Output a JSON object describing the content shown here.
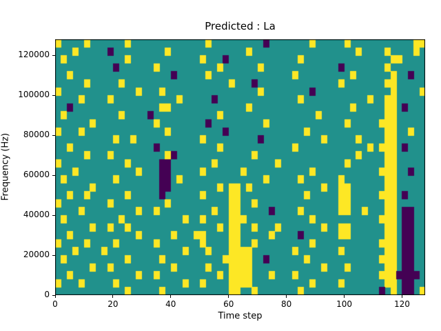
{
  "chart_data": {
    "type": "heatmap",
    "title": "Predicted : La",
    "xlabel": "Time step",
    "ylabel": "Frequency (Hz)",
    "x_range": [
      0,
      128
    ],
    "y_range": [
      0,
      128000
    ],
    "x_ticks": [
      0,
      20,
      40,
      60,
      80,
      100,
      120
    ],
    "y_ticks": [
      0,
      20000,
      40000,
      60000,
      80000,
      100000,
      120000
    ],
    "grid_legend": "rows top-to-bottom (high freq to low), 64 columns = 2 time steps each; '.'=mid class (teal), 'y'=high class (yellow), 'p'=low class (purple)",
    "colors": {
      ".": "#21918c",
      "y": "#fde725",
      "p": "#440154"
    },
    "grid": [
      [
        "y....y..",
        "....y...",
        "........",
        "..y.....",
        "....p...",
        "....y...",
        "..y.....",
        "......yy"
      ],
      [
        "...y....",
        ".p......",
        "...y....",
        "........",
        ".y......",
        "........",
        "....y...",
        ".y....y."
      ],
      [
        ".y......",
        "....y...",
        "........",
        ".y...p..",
        "........",
        "..y.....",
        "........",
        "..yy...."
      ],
      [
        "........",
        "..p.....",
        ".y......",
        "....y...",
        "...y....",
        "........",
        ".p......",
        ".y......"
      ],
      [
        "..y.....",
        "........",
        "....p...",
        "..y.....",
        "........",
        ".y......",
        "...y....",
        "..y..p.."
      ],
      [
        ".....y..",
        "...y....",
        "........",
        "......y.",
        "..p.....",
        "........",
        ".y......",
        ".yy....."
      ],
      [
        "y.......",
        "......y.",
        "..y.....",
        "........",
        "...y....",
        "....p...",
        "........",
        "..y....y"
      ],
      [
        "....y...",
        ".y......",
        ".....y..",
        "...p....",
        "........",
        "..y.....",
        "......y.",
        ".yy....."
      ],
      [
        "..p.....",
        "........",
        "..yy....",
        "........",
        ".y......",
        "........",
        "...y....",
        ".yy.p..."
      ],
      [
        ".y......",
        "...y....",
        "p.......",
        "....y...",
        "........",
        ".....y..",
        "........",
        ".yy....."
      ],
      [
        "......y.",
        "........",
        ".y......",
        "..p.....",
        "....y...",
        "........",
        "..y.....",
        "yyy....."
      ],
      [
        "y...y...",
        "........",
        "...y....",
        ".....p..",
        "........",
        "...y....",
        "........",
        ".yy..y.."
      ],
      [
        "........",
        "..y..y..",
        "........",
        ".y......",
        "...p....",
        "......y.",
        "....y...",
        ".yy....."
      ],
      [
        "..y.....",
        "........",
        ".p......",
        "....y...",
        "........",
        ".y......",
        "......y.",
        "yyy.p..."
      ],
      [
        ".....y..",
        ".y......",
        "...yp...",
        "........",
        "..y.....",
        "........",
        "....y...",
        ".yy....."
      ],
      [
        "y.......",
        "....y...",
        "..pp....",
        "...y....",
        "......y.",
        "........",
        "..y.....",
        ".yy....."
      ],
      [
        "...y....",
        "......y.",
        "..pp....",
        ".y......",
        "y.......",
        "....y...",
        "........",
        "yyy..p.."
      ],
      [
        ".y......",
        "..y.....",
        "..pp.y..",
        "........",
        "....y...",
        "..y.....",
        ".y......",
        ".yy....."
      ],
      [
        "......y.",
        "........",
        "..pp....",
        "....y.yy",
        ".y......",
        "......y.",
        ".yy.....",
        ".yy....."
      ],
      [
        "..y..y..",
        "....y...",
        "..p.....",
        ".y....yy",
        "........",
        "...y....",
        ".yy.....",
        "yyy.p..."
      ],
      [
        "y.......",
        ".y......",
        "...y....",
        "......yy",
        "..y.....",
        "........",
        ".yy.....",
        ".yy....."
      ],
      [
        "....y...",
        "......y.",
        ".y......",
        "...y..yy",
        ".....p..",
        "..y.....",
        ".yy..y..",
        ".yy.pp.."
      ],
      [
        ".y......",
        "...y....",
        "......y.",
        ".y....yy",
        "y.......",
        "....y...",
        "........",
        "yyy.pp.."
      ],
      [
        "......y.",
        ".y..y...",
        "........",
        "....y.yy",
        "..y...y.",
        "......y.",
        ".yy.....",
        ".yy.pp.."
      ],
      [
        "..y.....",
        "......y.",
        "....y...",
        "yy....yy",
        ".....y..",
        "..p.....",
        ".yy.....",
        ".yy.pp.."
      ],
      [
        "y....y..",
        "..y.....",
        ".y......",
        ".y....yy",
        "..y.....",
        "....y...",
        "........",
        "yyy.pp.."
      ],
      [
        "...y....",
        "y.......",
        "......y.",
        "..y...yy",
        "yy......",
        ".y......",
        ".y......",
        ".yy.pp.."
      ],
      [
        ".y......",
        "....y...",
        "..y.....",
        ".....yyy",
        "yy..p...",
        "...y....",
        "........",
        "yyy.pp.."
      ],
      [
        "......y.",
        ".y......",
        "....y...",
        "..y...yy",
        "yy......",
        "......y.",
        "..y.....",
        ".yy.pp.."
      ],
      [
        "..y.....",
        "......y.",
        ".y......",
        "....y.yy",
        "yy...y..",
        ".y......",
        "........",
        "yyypppp."
      ],
      [
        "y...y...",
        "..y.....",
        "......y.",
        ".y....yy",
        "yy......",
        "....y...",
        ".y......",
        ".yy.pp.."
      ],
      [
        "........",
        "....y...",
        "..y.....",
        "......yy",
        "..y.....",
        "..y.....",
        "........",
        "p.y.pp.y"
      ]
    ]
  }
}
